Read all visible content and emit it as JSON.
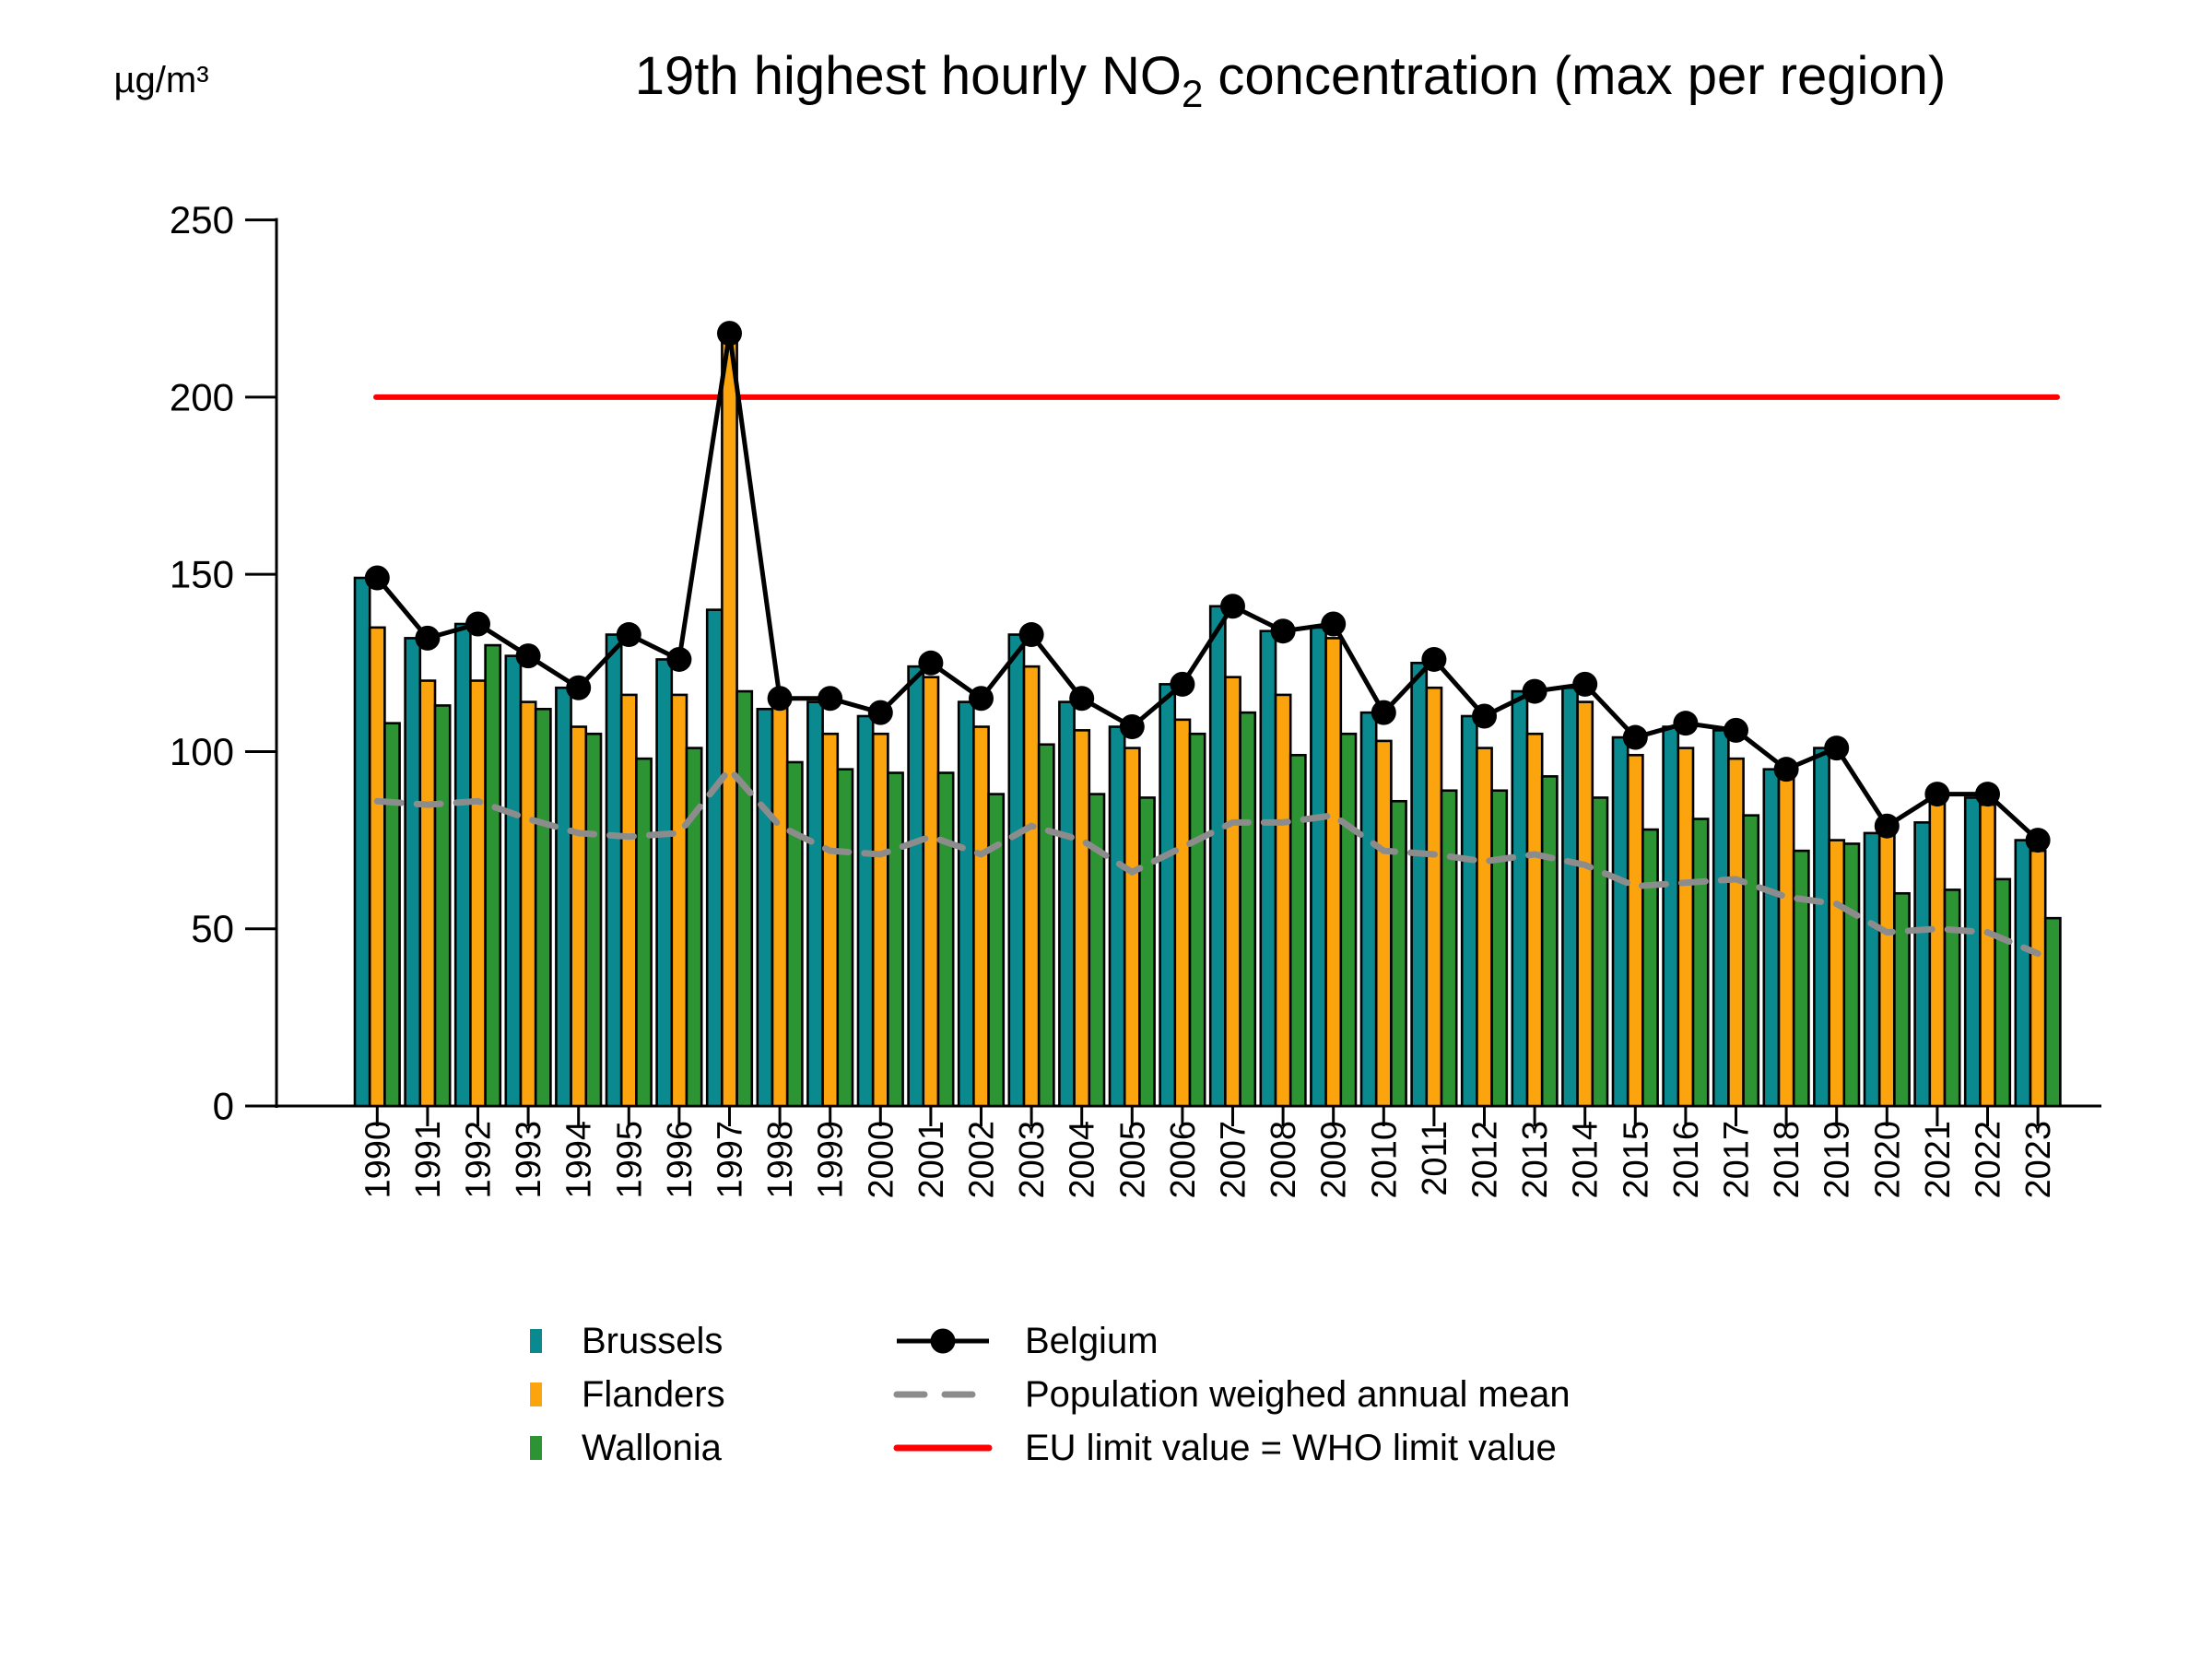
{
  "header": {
    "title_pre": "19th highest hourly NO",
    "title_sub": "2",
    "title_post": " concentration (max per region)",
    "y_unit": "µg/m³"
  },
  "chart_data": {
    "type": "bar",
    "title": "19th highest hourly NO2 concentration (max per region)",
    "xlabel": "",
    "ylabel": "µg/m³",
    "ylim": [
      0,
      250
    ],
    "y_ticks": [
      0,
      50,
      100,
      150,
      200,
      250
    ],
    "grid": false,
    "legend_position": "bottom",
    "categories": [
      1990,
      1991,
      1992,
      1993,
      1994,
      1995,
      1996,
      1997,
      1998,
      1999,
      2000,
      2001,
      2002,
      2003,
      2004,
      2005,
      2006,
      2007,
      2008,
      2009,
      2010,
      2011,
      2012,
      2013,
      2014,
      2015,
      2016,
      2017,
      2018,
      2019,
      2020,
      2021,
      2022,
      2023
    ],
    "series": [
      {
        "name": "Brussels",
        "kind": "bar",
        "color": "#0A8A8F",
        "values": [
          149,
          132,
          136,
          127,
          118,
          133,
          126,
          140,
          112,
          114,
          110,
          124,
          114,
          133,
          114,
          107,
          119,
          141,
          134,
          135,
          111,
          125,
          110,
          117,
          118,
          104,
          107,
          106,
          95,
          101,
          77,
          80,
          87,
          75
        ]
      },
      {
        "name": "Flanders",
        "kind": "bar",
        "color": "#FCA40D",
        "values": [
          135,
          120,
          120,
          114,
          107,
          116,
          116,
          218,
          114,
          105,
          105,
          121,
          107,
          124,
          106,
          101,
          109,
          121,
          116,
          132,
          103,
          118,
          101,
          105,
          114,
          99,
          101,
          98,
          93,
          75,
          79,
          88,
          85,
          72
        ]
      },
      {
        "name": "Wallonia",
        "kind": "bar",
        "color": "#2D9434",
        "values": [
          108,
          113,
          130,
          112,
          105,
          98,
          101,
          117,
          97,
          95,
          94,
          94,
          88,
          102,
          88,
          87,
          105,
          111,
          99,
          105,
          86,
          89,
          89,
          93,
          87,
          78,
          81,
          82,
          72,
          74,
          60,
          61,
          64,
          53
        ]
      },
      {
        "name": "Belgium",
        "kind": "line-dot",
        "color": "#000000",
        "values": [
          149,
          132,
          136,
          127,
          118,
          133,
          126,
          218,
          115,
          115,
          111,
          125,
          115,
          133,
          115,
          107,
          119,
          141,
          134,
          136,
          111,
          126,
          110,
          117,
          119,
          104,
          108,
          106,
          95,
          101,
          79,
          88,
          88,
          75
        ]
      },
      {
        "name": "Population weighed annual mean",
        "kind": "dashed-line",
        "color": "#8C8C8C",
        "values": [
          86,
          85,
          86,
          81,
          77,
          76,
          77,
          95,
          79,
          72,
          71,
          76,
          71,
          79,
          75,
          66,
          73,
          80,
          80,
          82,
          72,
          71,
          69,
          71,
          68,
          62,
          63,
          64,
          59,
          57,
          49,
          50,
          49,
          43
        ]
      },
      {
        "name": "EU limit value = WHO limit value",
        "kind": "hline",
        "color": "#FF0000",
        "value": 200
      }
    ]
  },
  "legend": {
    "col1": [
      {
        "label": "Brussels",
        "swatch": "rect",
        "color": "#0A8A8F"
      },
      {
        "label": "Flanders",
        "swatch": "rect",
        "color": "#FCA40D"
      },
      {
        "label": "Wallonia",
        "swatch": "rect",
        "color": "#2D9434"
      }
    ],
    "col2": [
      {
        "label": "Belgium",
        "swatch": "line-dot",
        "color": "#000000"
      },
      {
        "label": "Population weighed annual mean",
        "swatch": "dashed",
        "color": "#8C8C8C"
      },
      {
        "label": "EU limit value = WHO limit value",
        "swatch": "line",
        "color": "#FF0000"
      }
    ]
  }
}
